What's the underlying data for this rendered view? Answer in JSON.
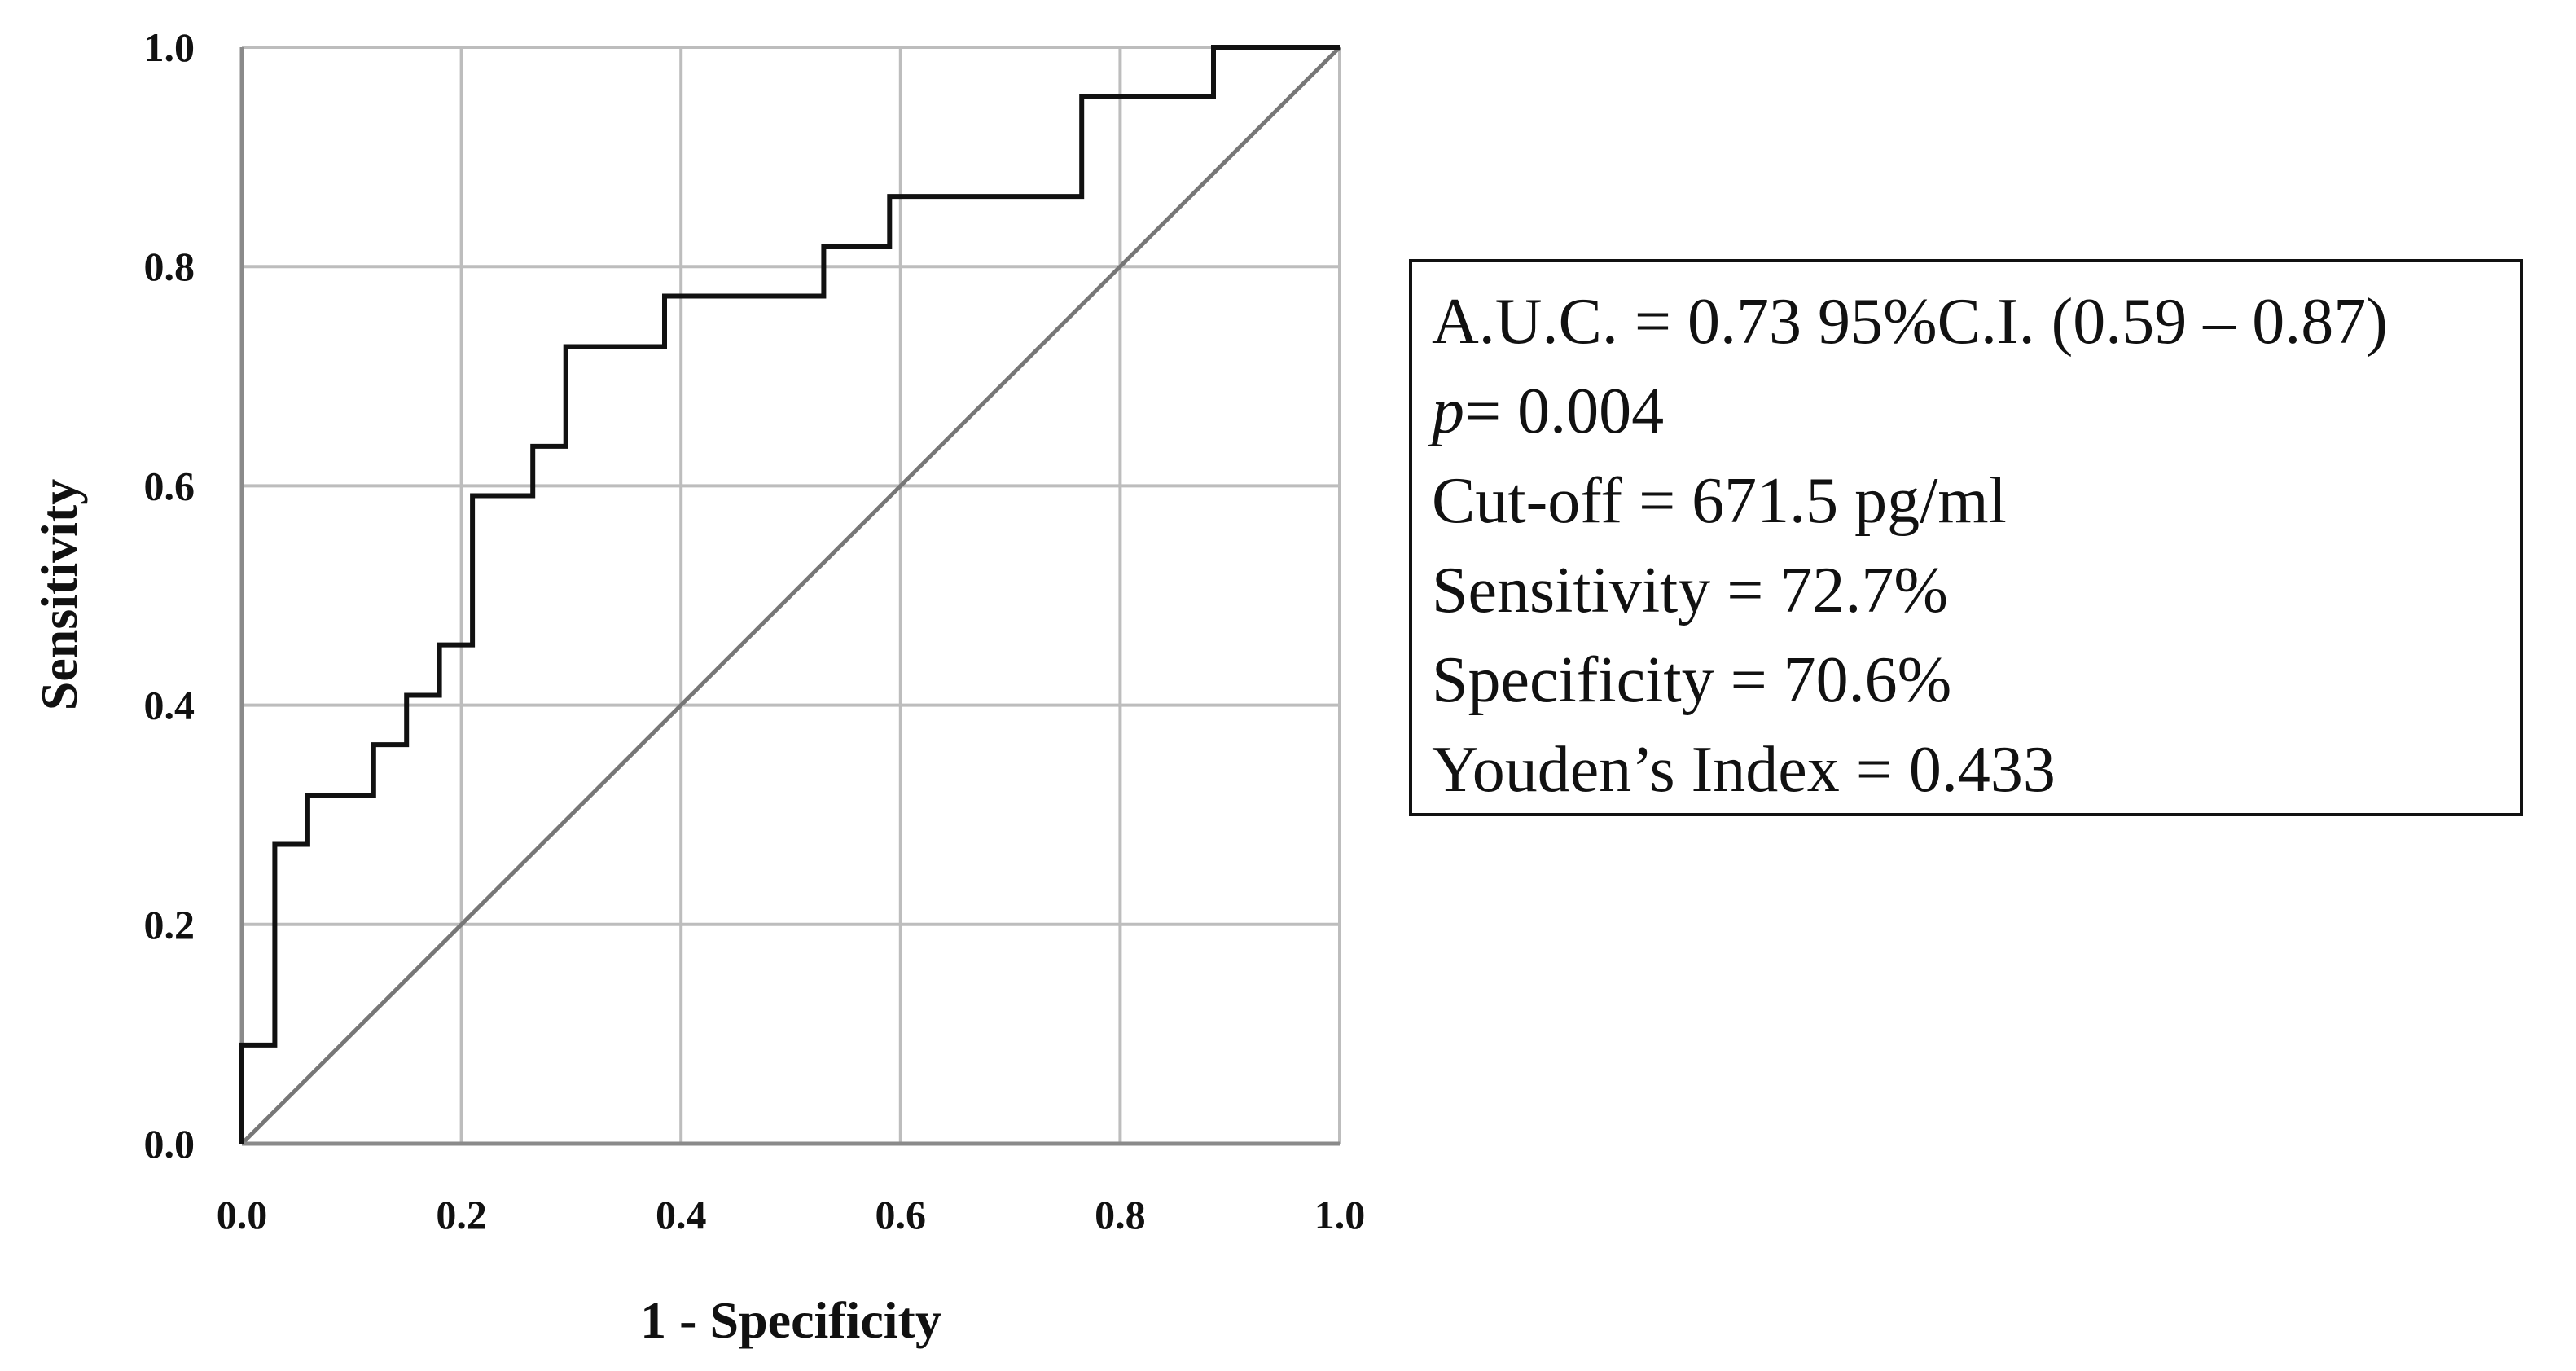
{
  "chart_data": {
    "type": "line",
    "xlabel": "1 - Specificity",
    "ylabel": "Sensitivity",
    "xlim": [
      0.0,
      1.0
    ],
    "ylim": [
      0.0,
      1.0
    ],
    "x_ticks": [
      "0.0",
      "0.2",
      "0.4",
      "0.6",
      "0.8",
      "1.0"
    ],
    "y_ticks": [
      "0.0",
      "0.2",
      "0.4",
      "0.6",
      "0.8",
      "1.0"
    ],
    "grid": true,
    "series": [
      {
        "color": "#111111",
        "x": [
          0.0,
          0.0,
          0.03,
          0.03,
          0.06,
          0.06,
          0.12,
          0.12,
          0.15,
          0.15,
          0.18,
          0.18,
          0.21,
          0.21,
          0.265,
          0.265,
          0.295,
          0.295,
          0.385,
          0.385,
          0.53,
          0.53,
          0.59,
          0.59,
          0.765,
          0.765,
          0.885,
          0.885,
          1.0
        ],
        "y": [
          0.0,
          0.09,
          0.09,
          0.273,
          0.273,
          0.318,
          0.318,
          0.364,
          0.364,
          0.409,
          0.409,
          0.455,
          0.455,
          0.591,
          0.591,
          0.636,
          0.636,
          0.727,
          0.727,
          0.773,
          0.773,
          0.818,
          0.818,
          0.864,
          0.864,
          0.955,
          0.955,
          1.0,
          1.0
        ]
      },
      {
        "color": "#777777",
        "x": [
          0.0,
          1.0
        ],
        "y": [
          0.0,
          1.0
        ]
      }
    ]
  },
  "info_box": {
    "auc": "A.U.C. = 0.73 95%C.I. (0.59 – 0.87)",
    "p_symbol": "p",
    "p_value": "= 0.004",
    "cutoff": "Cut-off = 671.5 pg/ml",
    "sensitivity": "Sensitivity = 72.7%",
    "specificity": "Specificity = 70.6%",
    "youden": "Youden’s Index = 0.433"
  }
}
